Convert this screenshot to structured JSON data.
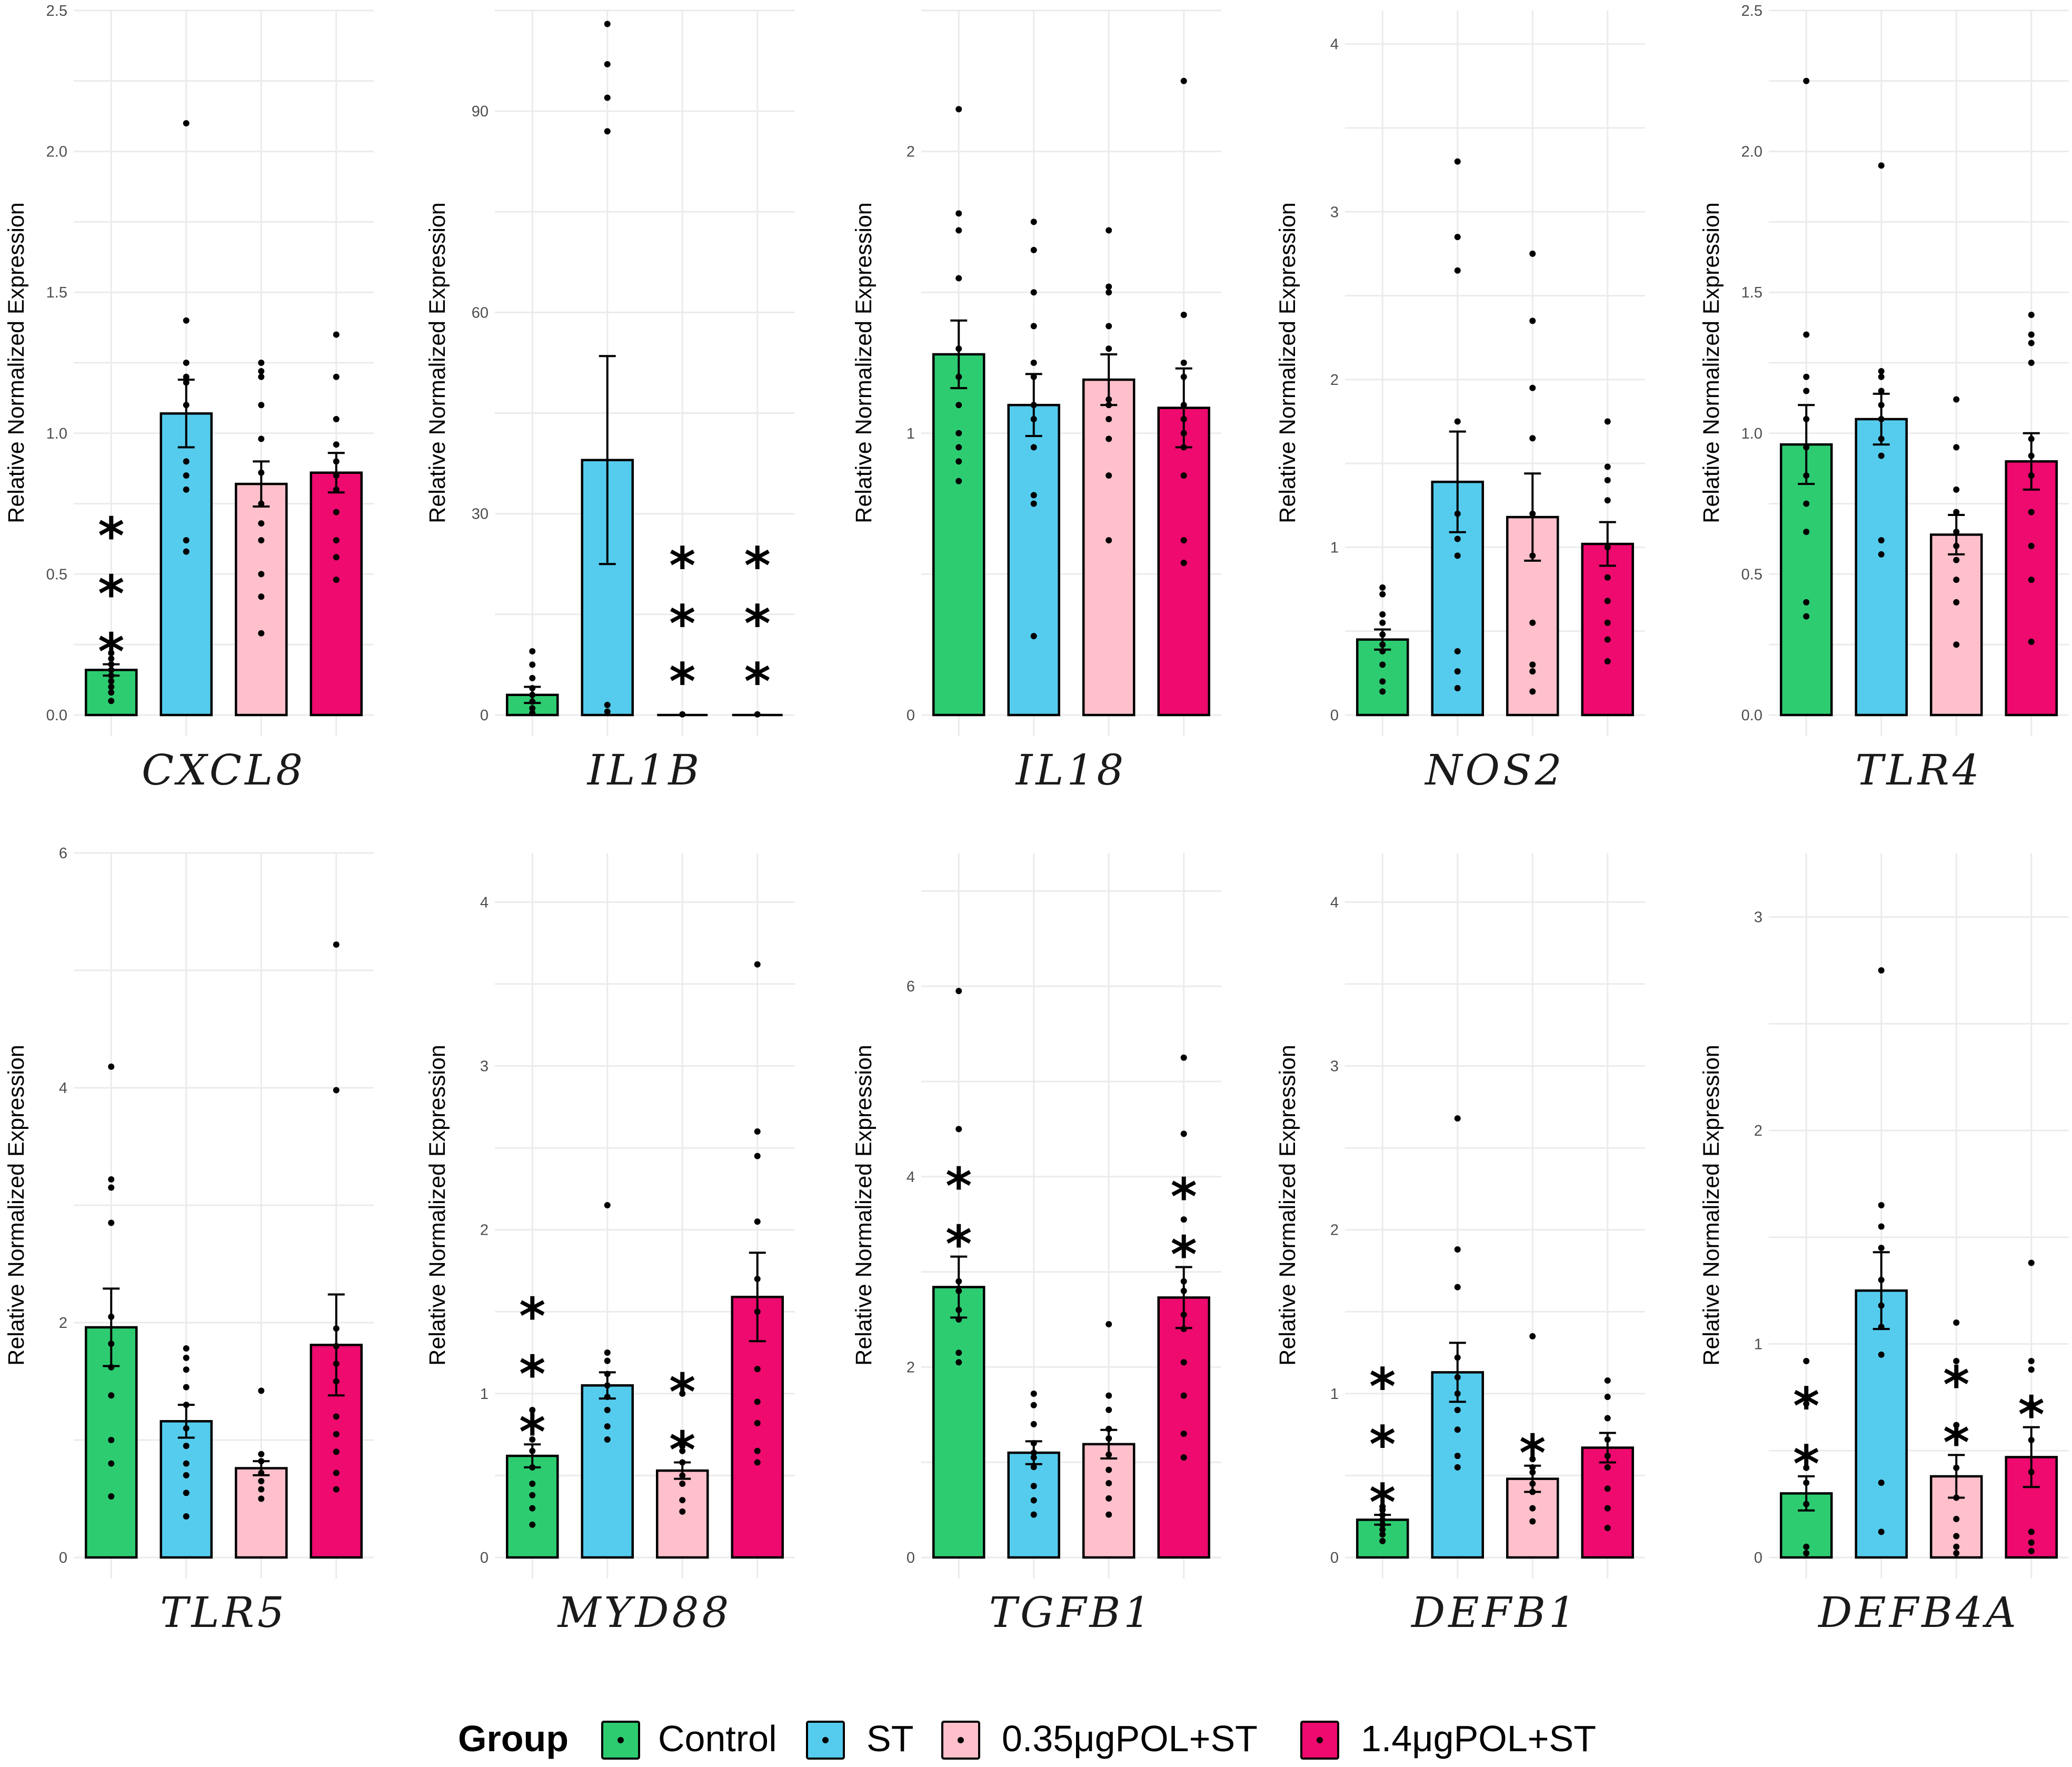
{
  "legend": {
    "title": "Group",
    "items": [
      {
        "label": "Control",
        "color": "#2ecc71"
      },
      {
        "label": "ST",
        "color": "#55ccee"
      },
      {
        "label": "0.35μgPOL+ST",
        "color": "#ffc0cb"
      },
      {
        "label": "1.4μgPOL+ST",
        "color": "#ee0a6e"
      }
    ]
  },
  "chart_data": [
    {
      "type": "bar",
      "title": "CXCL8",
      "ylabel": "Relative Normalized Expression",
      "ylim": [
        0,
        2.5
      ],
      "yticks": [
        "0.0",
        "0.5",
        "1.0",
        "1.5",
        "2.0",
        "2.5"
      ],
      "categories": [
        "Control",
        "ST",
        "0.35μgPOL+ST",
        "1.4μgPOL+ST"
      ],
      "values": [
        0.16,
        1.07,
        0.82,
        0.86
      ],
      "errors": [
        0.02,
        0.12,
        0.08,
        0.07
      ],
      "points": [
        [
          0.05,
          0.08,
          0.1,
          0.12,
          0.14,
          0.16,
          0.18,
          0.2,
          0.22,
          0.25
        ],
        [
          0.58,
          0.62,
          0.8,
          0.85,
          0.9,
          1.1,
          1.18,
          1.2,
          1.25,
          1.4,
          2.1
        ],
        [
          0.29,
          0.42,
          0.5,
          0.62,
          0.68,
          0.75,
          0.86,
          0.98,
          1.1,
          1.2,
          1.22,
          1.25
        ],
        [
          0.48,
          0.56,
          0.62,
          0.72,
          0.8,
          0.85,
          0.9,
          0.96,
          1.05,
          1.2,
          1.35
        ]
      ],
      "stars": [
        "***",
        "",
        "",
        ""
      ]
    },
    {
      "type": "bar",
      "title": "IL1B",
      "ylabel": "Relative Normalized Expression",
      "ylim": [
        0,
        105
      ],
      "yticks": [
        "0",
        "30",
        "60",
        "90"
      ],
      "categories": [
        "Control",
        "ST",
        "0.35μgPOL+ST",
        "1.4μgPOL+ST"
      ],
      "values": [
        3,
        38,
        0,
        0
      ],
      "errors": [
        1.2,
        15.5,
        0,
        0
      ],
      "points": [
        [
          0.3,
          1.0,
          2.0,
          3.0,
          4.0,
          5.5,
          7.5,
          9.5
        ],
        [
          0.5,
          1.5,
          87,
          92,
          97,
          103
        ],
        [
          0.1
        ],
        [
          0.1
        ]
      ],
      "stars": [
        "",
        "",
        "***",
        "***"
      ]
    },
    {
      "type": "bar",
      "title": "IL18",
      "ylabel": "Relative Normalized Expression",
      "ylim": [
        0,
        2.5
      ],
      "yticks": [
        "0",
        "1",
        "2"
      ],
      "categories": [
        "Control",
        "ST",
        "0.35μgPOL+ST",
        "1.4μgPOL+ST"
      ],
      "values": [
        1.28,
        1.1,
        1.19,
        1.09
      ],
      "errors": [
        0.12,
        0.11,
        0.09,
        0.14
      ],
      "points": [
        [
          0.83,
          0.9,
          0.95,
          1.0,
          1.1,
          1.2,
          1.3,
          1.55,
          1.72,
          1.78,
          2.15
        ],
        [
          0.28,
          0.75,
          0.78,
          0.95,
          1.05,
          1.1,
          1.2,
          1.25,
          1.38,
          1.5,
          1.65,
          1.75
        ],
        [
          0.62,
          0.85,
          0.98,
          1.05,
          1.1,
          1.12,
          1.3,
          1.38,
          1.5,
          1.52,
          1.72
        ],
        [
          0.54,
          0.62,
          0.85,
          0.95,
          1.0,
          1.05,
          1.1,
          1.2,
          1.25,
          1.42,
          2.25
        ]
      ],
      "stars": [
        "",
        "",
        "",
        ""
      ]
    },
    {
      "type": "bar",
      "title": "NOS2",
      "ylabel": "Relative Normalized Expression",
      "ylim": [
        0,
        4.2
      ],
      "yticks": [
        "0",
        "1",
        "2",
        "3",
        "4"
      ],
      "categories": [
        "Control",
        "ST",
        "0.35μgPOL+ST",
        "1.4μgPOL+ST"
      ],
      "values": [
        0.45,
        1.39,
        1.18,
        1.02
      ],
      "errors": [
        0.06,
        0.3,
        0.26,
        0.13
      ],
      "points": [
        [
          0.14,
          0.2,
          0.3,
          0.38,
          0.42,
          0.48,
          0.55,
          0.6,
          0.72,
          0.76
        ],
        [
          0.16,
          0.26,
          0.38,
          0.95,
          1.05,
          1.2,
          1.75,
          2.65,
          2.85,
          3.3
        ],
        [
          0.14,
          0.26,
          0.3,
          0.55,
          0.95,
          1.2,
          1.65,
          1.95,
          2.35,
          2.75
        ],
        [
          0.32,
          0.45,
          0.55,
          0.68,
          0.82,
          1.0,
          1.28,
          1.4,
          1.48,
          1.75
        ]
      ],
      "stars": [
        "",
        "",
        "",
        ""
      ]
    },
    {
      "type": "bar",
      "title": "TLR4",
      "ylabel": "Relative Normalized Expression",
      "ylim": [
        0,
        2.5
      ],
      "yticks": [
        "0.0",
        "0.5",
        "1.0",
        "1.5",
        "2.0",
        "2.5"
      ],
      "categories": [
        "Control",
        "ST",
        "0.35μgPOL+ST",
        "1.4μgPOL+ST"
      ],
      "values": [
        0.96,
        1.05,
        0.64,
        0.9
      ],
      "errors": [
        0.14,
        0.09,
        0.07,
        0.1
      ],
      "points": [
        [
          0.35,
          0.4,
          0.65,
          0.75,
          0.85,
          0.95,
          1.05,
          1.15,
          1.2,
          1.35,
          2.25
        ],
        [
          0.57,
          0.62,
          0.92,
          0.98,
          1.05,
          1.1,
          1.15,
          1.2,
          1.22,
          1.95
        ],
        [
          0.25,
          0.4,
          0.48,
          0.55,
          0.6,
          0.65,
          0.72,
          0.8,
          0.95,
          1.12
        ],
        [
          0.26,
          0.48,
          0.6,
          0.72,
          0.85,
          0.92,
          0.98,
          1.25,
          1.32,
          1.35,
          1.42
        ]
      ],
      "stars": [
        "",
        "",
        "",
        ""
      ]
    },
    {
      "type": "bar",
      "title": "TLR5",
      "ylabel": "Relative Normalized Expression",
      "ylim": [
        0,
        6
      ],
      "yticks": [
        "0",
        "2",
        "4",
        "6"
      ],
      "categories": [
        "Control",
        "ST",
        "0.35μgPOL+ST",
        "1.4μgPOL+ST"
      ],
      "values": [
        1.96,
        1.16,
        0.76,
        1.81
      ],
      "errors": [
        0.33,
        0.14,
        0.06,
        0.43
      ],
      "points": [
        [
          0.52,
          0.8,
          1.0,
          1.38,
          1.62,
          1.82,
          2.05,
          2.85,
          3.15,
          3.22,
          4.18
        ],
        [
          0.35,
          0.55,
          0.7,
          0.8,
          0.95,
          1.1,
          1.3,
          1.45,
          1.6,
          1.7,
          1.78
        ],
        [
          0.5,
          0.58,
          0.65,
          0.72,
          0.82,
          0.88,
          1.42
        ],
        [
          0.58,
          0.72,
          0.9,
          1.05,
          1.2,
          1.5,
          1.65,
          1.8,
          1.95,
          3.98,
          5.22
        ]
      ],
      "stars": [
        "",
        "",
        "",
        ""
      ]
    },
    {
      "type": "bar",
      "title": "MYD88",
      "ylabel": "Relative Normalized Expression",
      "ylim": [
        0,
        4.3
      ],
      "yticks": [
        "0",
        "1",
        "2",
        "3",
        "4"
      ],
      "categories": [
        "Control",
        "ST",
        "0.35μgPOL+ST",
        "1.4μgPOL+ST"
      ],
      "values": [
        0.62,
        1.05,
        0.53,
        1.59
      ],
      "errors": [
        0.07,
        0.08,
        0.05,
        0.27
      ],
      "points": [
        [
          0.2,
          0.3,
          0.38,
          0.45,
          0.55,
          0.65,
          0.72,
          0.82,
          0.9
        ],
        [
          0.72,
          0.8,
          0.9,
          0.98,
          1.05,
          1.12,
          1.2,
          1.25,
          2.15
        ],
        [
          0.28,
          0.35,
          0.45,
          0.5,
          0.58,
          0.65,
          0.68,
          1.0
        ],
        [
          0.58,
          0.65,
          0.82,
          0.95,
          1.15,
          1.5,
          1.7,
          2.05,
          2.45,
          2.6,
          3.62
        ]
      ],
      "stars": [
        "***",
        "",
        "**",
        ""
      ]
    },
    {
      "type": "bar",
      "title": "TGFB1",
      "ylabel": "Relative Normalized Expression",
      "ylim": [
        0,
        7.4
      ],
      "yticks": [
        "0",
        "2",
        "4",
        "6"
      ],
      "categories": [
        "Control",
        "ST",
        "0.35μgPOL+ST",
        "1.4μgPOL+ST"
      ],
      "values": [
        2.84,
        1.1,
        1.19,
        2.73
      ],
      "errors": [
        0.32,
        0.12,
        0.15,
        0.32
      ],
      "points": [
        [
          2.05,
          2.15,
          2.5,
          2.6,
          2.8,
          2.9,
          4.5,
          5.95
        ],
        [
          0.45,
          0.6,
          0.75,
          0.95,
          1.05,
          1.1,
          1.2,
          1.4,
          1.6,
          1.72
        ],
        [
          0.45,
          0.62,
          0.78,
          0.92,
          1.08,
          1.25,
          1.35,
          1.55,
          1.7,
          2.45
        ],
        [
          1.05,
          1.3,
          1.7,
          2.05,
          2.4,
          2.55,
          2.8,
          2.9,
          3.55,
          4.45,
          5.25
        ]
      ],
      "stars": [
        "**",
        "",
        "",
        "**"
      ]
    },
    {
      "type": "bar",
      "title": "DEFB1",
      "ylabel": "Relative Normalized Expression",
      "ylim": [
        0,
        4.3
      ],
      "yticks": [
        "0",
        "1",
        "2",
        "3",
        "4"
      ],
      "categories": [
        "Control",
        "ST",
        "0.35μgPOL+ST",
        "1.4μgPOL+ST"
      ],
      "values": [
        0.23,
        1.13,
        0.48,
        0.67
      ],
      "errors": [
        0.03,
        0.18,
        0.08,
        0.09
      ],
      "points": [
        [
          0.1,
          0.14,
          0.17,
          0.2,
          0.23,
          0.26,
          0.29,
          0.31
        ],
        [
          0.55,
          0.62,
          0.78,
          0.9,
          1.0,
          1.1,
          1.22,
          1.65,
          1.88,
          2.68
        ],
        [
          0.22,
          0.3,
          0.4,
          0.45,
          0.52,
          0.55,
          0.6,
          1.35
        ],
        [
          0.18,
          0.3,
          0.42,
          0.55,
          0.62,
          0.72,
          0.85,
          0.98,
          1.08
        ]
      ],
      "stars": [
        "***",
        "",
        "*",
        ""
      ]
    },
    {
      "type": "bar",
      "title": "DEFB4A",
      "ylabel": "Relative Normalized Expression",
      "ylim": [
        0,
        3.3
      ],
      "yticks": [
        "0",
        "1",
        "2",
        "3"
      ],
      "categories": [
        "Control",
        "ST",
        "0.35μgPOL+ST",
        "1.4μgPOL+ST"
      ],
      "values": [
        0.3,
        1.25,
        0.38,
        0.47
      ],
      "errors": [
        0.08,
        0.18,
        0.1,
        0.14
      ],
      "points": [
        [
          0.02,
          0.05,
          0.25,
          0.35,
          0.42,
          0.48,
          0.72,
          0.92
        ],
        [
          0.12,
          0.35,
          0.95,
          1.08,
          1.18,
          1.3,
          1.45,
          1.55,
          1.65,
          2.75
        ],
        [
          0.02,
          0.05,
          0.1,
          0.18,
          0.28,
          0.42,
          0.62,
          0.92,
          1.1
        ],
        [
          0.03,
          0.07,
          0.12,
          0.4,
          0.55,
          0.72,
          0.88,
          0.92,
          1.38
        ]
      ],
      "stars": [
        "**",
        "",
        "**",
        "*"
      ]
    }
  ]
}
